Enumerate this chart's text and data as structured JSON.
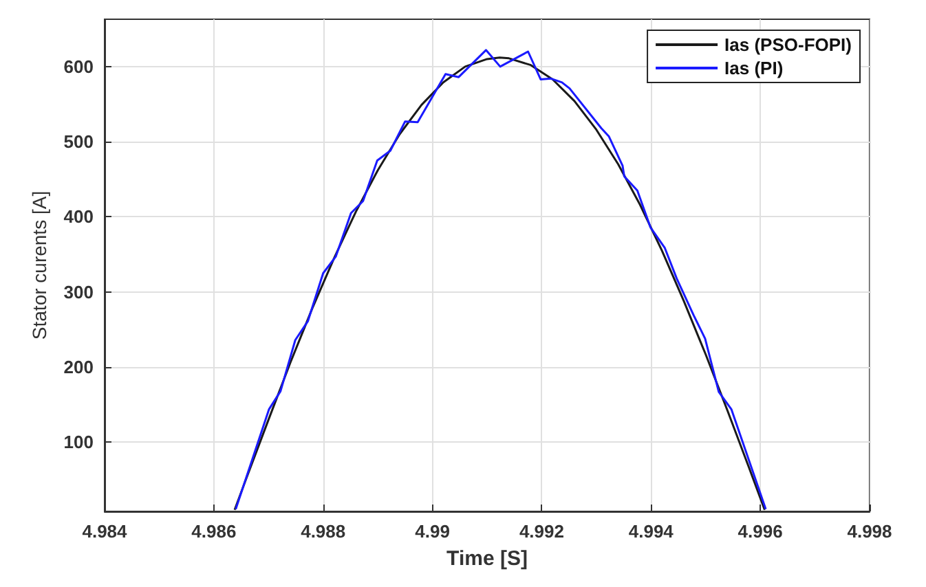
{
  "chart_data": {
    "type": "line",
    "xlabel": "Time [S]",
    "ylabel": "Stator curents [A]",
    "xlim": [
      4.984,
      4.998
    ],
    "xticks": [
      4.984,
      4.986,
      4.988,
      4.99,
      4.992,
      4.994,
      4.996,
      4.998
    ],
    "ylim": [
      8,
      663
    ],
    "yticks": [
      100,
      200,
      300,
      400,
      500,
      600
    ],
    "grid": true,
    "legend": "top right",
    "marker": "none",
    "line_style": "solid",
    "series": [
      {
        "name": "Ias (PSO-FOPI)",
        "color": "#1a1a1a",
        "x": [
          4.98638,
          4.9866,
          4.987,
          4.9874,
          4.9878,
          4.9882,
          4.9886,
          4.989,
          4.9894,
          4.9898,
          4.9902,
          4.9906,
          4.991,
          4.99123,
          4.9914,
          4.9918,
          4.9922,
          4.9926,
          4.993,
          4.9934,
          4.9938,
          4.9942,
          4.9946,
          4.995,
          4.9954,
          4.9958,
          4.99608
        ],
        "values": [
          10,
          53,
          130,
          206,
          278,
          345,
          407,
          462,
          510,
          549,
          579,
          600,
          610,
          612,
          611,
          602,
          583,
          554,
          516,
          470,
          416,
          355,
          288,
          217,
          142,
          65,
          10
        ]
      },
      {
        "name": "Ias (PI)",
        "color": "#1a1aff",
        "x": [
          4.9864,
          4.98701,
          4.98722,
          4.98749,
          4.98772,
          4.988,
          4.98823,
          4.98851,
          4.98873,
          4.98899,
          4.98923,
          4.9895,
          4.98973,
          4.99024,
          4.99048,
          4.99098,
          4.99124,
          4.99175,
          4.99198,
          4.99217,
          4.99237,
          4.99251,
          4.99309,
          4.99323,
          4.99348,
          4.99351,
          4.99375,
          4.99399,
          4.99425,
          4.99447,
          4.99478,
          4.99499,
          4.99524,
          4.99547,
          4.9961
        ],
        "values": [
          11,
          144,
          168,
          236,
          261,
          325,
          347,
          405,
          421,
          475,
          488,
          527,
          526,
          590,
          586,
          622,
          600,
          620,
          583,
          584,
          579,
          571,
          518,
          507,
          468,
          454,
          435,
          386,
          359,
          318,
          269,
          238,
          167,
          144,
          11
        ]
      }
    ]
  }
}
